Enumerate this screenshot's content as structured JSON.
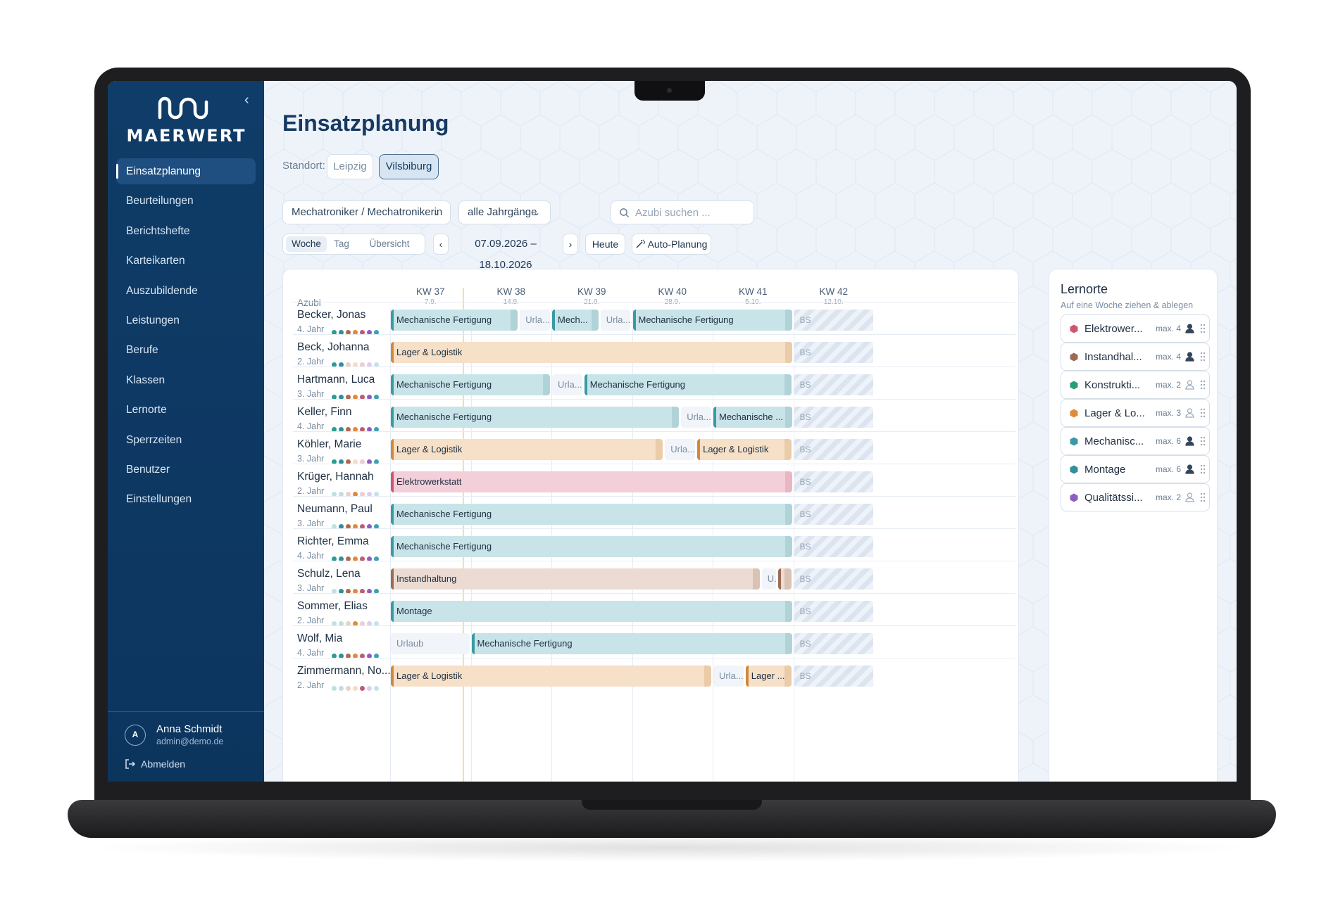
{
  "app": {
    "brand": "MAERWERT",
    "page_title": "Einsatzplanung"
  },
  "sidebar": {
    "items": [
      {
        "label": "Einsatzplanung",
        "active": true
      },
      {
        "label": "Beurteilungen"
      },
      {
        "label": "Berichtshefte"
      },
      {
        "label": "Karteikarten"
      },
      {
        "label": "Auszubildende"
      },
      {
        "label": "Leistungen"
      },
      {
        "label": "Berufe"
      },
      {
        "label": "Klassen"
      },
      {
        "label": "Lernorte"
      },
      {
        "label": "Sperrzeiten"
      },
      {
        "label": "Benutzer"
      },
      {
        "label": "Einstellungen"
      }
    ],
    "user": {
      "initial": "A",
      "name": "Anna Schmidt",
      "email": "admin@demo.de"
    },
    "logout_label": "Abmelden"
  },
  "filters": {
    "standort_label": "Standort:",
    "standorte": [
      "Leipzig",
      "Vilsbiburg"
    ],
    "selected_standort": "Vilsbiburg",
    "beruf": "Mechatroniker / Mechatronikerin",
    "jahrgang": "alle Jahrgänge",
    "search_placeholder": "Azubi suchen ...",
    "views": [
      "Woche",
      "Tag",
      "Übersicht"
    ],
    "selected_view": "Woche",
    "range": "07.09.2026 – 18.10.2026",
    "prev": "‹",
    "next": "›",
    "today_label": "Heute",
    "auto_label": "Auto-Planung"
  },
  "grid": {
    "azubi_header": "Azubi",
    "weeks": [
      {
        "kw": "KW 37",
        "date": "7.9."
      },
      {
        "kw": "KW 38",
        "date": "14.9."
      },
      {
        "kw": "KW 39",
        "date": "21.9."
      },
      {
        "kw": "KW 40",
        "date": "28.9."
      },
      {
        "kw": "KW 41",
        "date": "5.10."
      },
      {
        "kw": "KW 42",
        "date": "12.10."
      }
    ],
    "bs_label": "BS",
    "rows": [
      {
        "name": "Becker, Jonas",
        "year": "4. Jahr",
        "dots": [
          1,
          1,
          1,
          1,
          1,
          1,
          1
        ],
        "bars": [
          {
            "label": "Mechanische Fertigung",
            "type": "mech",
            "start": 0,
            "weeks": 1.6
          },
          {
            "label": "Urla...",
            "type": "url",
            "start": 1.6,
            "weeks": 0.4
          },
          {
            "label": "Mech...",
            "type": "mech",
            "start": 2.0,
            "weeks": 0.6
          },
          {
            "label": "Urla...",
            "type": "url",
            "start": 2.6,
            "weeks": 0.4
          },
          {
            "label": "Mechanische Fertigung",
            "type": "mech",
            "start": 3.0,
            "weeks": 2.0
          }
        ]
      },
      {
        "name": "Beck, Johanna",
        "year": "2. Jahr",
        "dots": [
          1,
          1,
          0,
          0,
          0,
          0,
          0
        ],
        "bars": [
          {
            "label": "Lager & Logistik",
            "type": "lag",
            "start": 0,
            "weeks": 5.0
          }
        ]
      },
      {
        "name": "Hartmann, Luca",
        "year": "3. Jahr",
        "dots": [
          1,
          1,
          1,
          1,
          1,
          1,
          1
        ],
        "bars": [
          {
            "label": "Mechanische Fertigung",
            "type": "mech",
            "start": 0,
            "weeks": 2.0
          },
          {
            "label": "Urla...",
            "type": "url",
            "start": 2.0,
            "weeks": 0.4
          },
          {
            "label": "Mechanische Fertigung",
            "type": "mech",
            "start": 2.4,
            "weeks": 2.6
          }
        ]
      },
      {
        "name": "Keller, Finn",
        "year": "4. Jahr",
        "dots": [
          1,
          1,
          1,
          1,
          1,
          1,
          1
        ],
        "bars": [
          {
            "label": "Mechanische Fertigung",
            "type": "mech",
            "start": 0,
            "weeks": 3.6
          },
          {
            "label": "Urla...",
            "type": "url",
            "start": 3.6,
            "weeks": 0.4
          },
          {
            "label": "Mechanische ...",
            "type": "mech",
            "start": 4.0,
            "weeks": 1.0
          }
        ]
      },
      {
        "name": "Köhler, Marie",
        "year": "3. Jahr",
        "dots": [
          1,
          1,
          1,
          0,
          0,
          1,
          1
        ],
        "bars": [
          {
            "label": "Lager & Logistik",
            "type": "lag",
            "start": 0,
            "weeks": 3.4
          },
          {
            "label": "Urla...",
            "type": "url",
            "start": 3.4,
            "weeks": 0.4
          },
          {
            "label": "Lager & Logistik",
            "type": "lag",
            "start": 3.8,
            "weeks": 1.2
          }
        ]
      },
      {
        "name": "Krüger, Hannah",
        "year": "2. Jahr",
        "dots": [
          0,
          0,
          0,
          1,
          0,
          0,
          0
        ],
        "bars": [
          {
            "label": "Elektrowerkstatt",
            "type": "ele",
            "start": 0,
            "weeks": 5.0
          }
        ]
      },
      {
        "name": "Neumann, Paul",
        "year": "3. Jahr",
        "dots": [
          0,
          1,
          1,
          1,
          1,
          1,
          1
        ],
        "bars": [
          {
            "label": "Mechanische Fertigung",
            "type": "mech",
            "start": 0,
            "weeks": 5.0
          }
        ]
      },
      {
        "name": "Richter, Emma",
        "year": "4. Jahr",
        "dots": [
          1,
          1,
          1,
          1,
          1,
          1,
          1
        ],
        "bars": [
          {
            "label": "Mechanische Fertigung",
            "type": "mech",
            "start": 0,
            "weeks": 5.0
          }
        ]
      },
      {
        "name": "Schulz, Lena",
        "year": "3. Jahr",
        "dots": [
          0,
          1,
          1,
          1,
          1,
          1,
          1
        ],
        "bars": [
          {
            "label": "Instandhaltung",
            "type": "ins",
            "start": 0,
            "weeks": 4.6
          },
          {
            "label": "U...",
            "type": "url",
            "start": 4.6,
            "weeks": 0.2
          },
          {
            "label": "",
            "type": "ins",
            "start": 4.8,
            "weeks": 0.2
          }
        ]
      },
      {
        "name": "Sommer, Elias",
        "year": "2. Jahr",
        "dots": [
          0,
          0,
          0,
          1,
          0,
          0,
          0
        ],
        "bars": [
          {
            "label": "Montage",
            "type": "mon",
            "start": 0,
            "weeks": 5.0
          }
        ]
      },
      {
        "name": "Wolf, Mia",
        "year": "4. Jahr",
        "dots": [
          1,
          1,
          1,
          1,
          1,
          1,
          1
        ],
        "bars": [
          {
            "label": "Urlaub",
            "type": "url",
            "start": 0,
            "weeks": 1.0
          },
          {
            "label": "Mechanische Fertigung",
            "type": "mech",
            "start": 1.0,
            "weeks": 4.0
          }
        ]
      },
      {
        "name": "Zimmermann, No...",
        "year": "2. Jahr",
        "dots": [
          0,
          0,
          0,
          0,
          1,
          0,
          0
        ],
        "bars": [
          {
            "label": "Lager & Logistik",
            "type": "lag",
            "start": 0,
            "weeks": 4.0
          },
          {
            "label": "Urla...",
            "type": "url",
            "start": 4.0,
            "weeks": 0.4
          },
          {
            "label": "Lager ...",
            "type": "lag",
            "start": 4.4,
            "weeks": 0.6
          }
        ]
      }
    ]
  },
  "dot_colors": [
    "#2b9c8f",
    "#2f8f9c",
    "#b06a4a",
    "#e08a3c",
    "#c05a78",
    "#8a5fc2",
    "#3aa3b0"
  ],
  "lernorte": {
    "title": "Lernorte",
    "subtitle": "Auf eine Woche ziehen & ablegen",
    "items": [
      {
        "name": "Elektrower...",
        "max": "max. 4",
        "color": "#d2556f",
        "person": "filled"
      },
      {
        "name": "Instandhal...",
        "max": "max. 4",
        "color": "#9c6c52",
        "person": "filled"
      },
      {
        "name": "Konstrukti...",
        "max": "max. 2",
        "color": "#2b9c7a",
        "person": "outline"
      },
      {
        "name": "Lager & Lo...",
        "max": "max. 3",
        "color": "#e08a3c",
        "person": "outline"
      },
      {
        "name": "Mechanisc...",
        "max": "max. 6",
        "color": "#3a9aa4",
        "person": "filled"
      },
      {
        "name": "Montage",
        "max": "max. 6",
        "color": "#2f8f9c",
        "person": "filled"
      },
      {
        "name": "Qualitätssi...",
        "max": "max. 2",
        "color": "#8a5fc2",
        "person": "outline"
      }
    ]
  }
}
